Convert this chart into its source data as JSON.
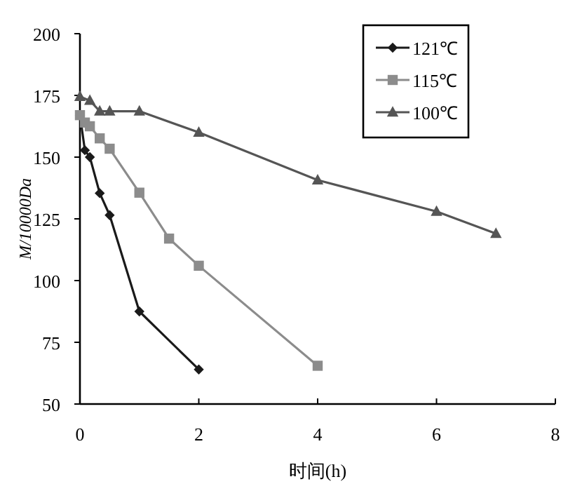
{
  "chart_data": {
    "type": "line",
    "xlabel": "时间(h)",
    "ylabel": "M/10000Da",
    "xlim": [
      0,
      8
    ],
    "ylim": [
      50,
      200
    ],
    "xticks": [
      0,
      2,
      4,
      6,
      8
    ],
    "yticks": [
      50,
      75,
      100,
      125,
      150,
      175,
      200
    ],
    "grid": false,
    "legend": "top right",
    "line_style": "solid",
    "series": [
      {
        "name": "121℃",
        "color": "#1a1a1a",
        "marker": "diamond",
        "x": [
          0,
          0.083,
          0.167,
          0.333,
          0.5,
          1,
          2
        ],
        "values": [
          167,
          152.8,
          150,
          135.4,
          126.5,
          87.5,
          64
        ]
      },
      {
        "name": "115℃",
        "color": "#8c8c8c",
        "marker": "square",
        "x": [
          0,
          0.083,
          0.167,
          0.333,
          0.5,
          1,
          1.5,
          2,
          4
        ],
        "values": [
          167,
          164,
          162.5,
          157.6,
          153.4,
          135.6,
          117,
          106,
          65.5
        ]
      },
      {
        "name": "100℃",
        "color": "#555555",
        "marker": "triangle",
        "x": [
          0,
          0.167,
          0.333,
          0.5,
          1,
          2,
          4,
          6,
          7
        ],
        "values": [
          174.5,
          172.9,
          168.6,
          168.6,
          168.6,
          160,
          140.7,
          128,
          119
        ]
      }
    ]
  }
}
